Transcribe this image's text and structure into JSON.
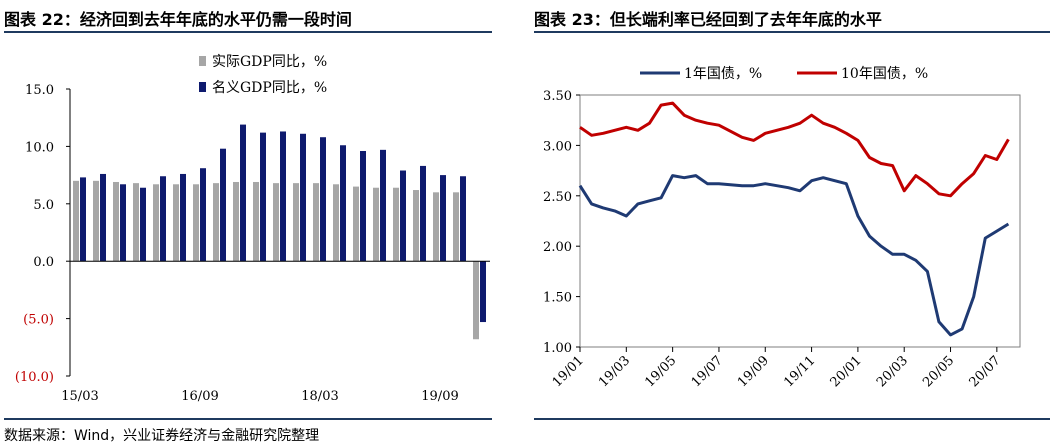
{
  "titles": {
    "left": "图表 22：经济回到去年年底的水平仍需一段时间",
    "right": "图表 23：但长端利率已经回到了去年年底的水平"
  },
  "source": "数据来源：Wind，兴业证券经济与金融研究院整理",
  "chart_data": [
    {
      "type": "bar",
      "categories": [
        "15/03",
        "15/06",
        "15/09",
        "15/12",
        "16/03",
        "16/06",
        "16/09",
        "16/12",
        "17/03",
        "17/06",
        "17/09",
        "17/12",
        "18/03",
        "18/06",
        "18/09",
        "18/12",
        "19/03",
        "19/06",
        "19/09",
        "19/12",
        "20/03"
      ],
      "x_tick_labels": [
        "15/03",
        "16/09",
        "18/03",
        "19/09"
      ],
      "series": [
        {
          "name": "实际GDP同比，%",
          "color": "#a6a6a6",
          "values": [
            7.0,
            7.0,
            6.9,
            6.8,
            6.7,
            6.7,
            6.7,
            6.8,
            6.9,
            6.9,
            6.8,
            6.8,
            6.8,
            6.7,
            6.5,
            6.4,
            6.4,
            6.2,
            6.0,
            6.0,
            -6.8
          ]
        },
        {
          "name": "名义GDP同比，%",
          "color": "#0e1a6e",
          "values": [
            7.3,
            7.6,
            6.7,
            6.4,
            7.4,
            7.6,
            8.1,
            9.8,
            11.9,
            11.2,
            11.3,
            11.1,
            10.8,
            10.1,
            9.6,
            9.7,
            7.9,
            8.3,
            7.5,
            7.4,
            -5.3
          ]
        }
      ],
      "y_tick_labels": [
        "15.0",
        "10.0",
        "5.0",
        "0.0",
        "(5.0)",
        "(10.0)"
      ],
      "ylim": [
        -10,
        15
      ],
      "grid": false,
      "legend": "top-center"
    },
    {
      "type": "line",
      "x_tick_labels": [
        "19/01",
        "19/03",
        "19/05",
        "19/07",
        "19/09",
        "19/11",
        "20/01",
        "20/03",
        "20/05",
        "20/07"
      ],
      "series": [
        {
          "name": "1年国债，%",
          "color": "#1f3a73",
          "points": [
            [
              "19/01",
              2.6
            ],
            [
              "19/01",
              2.42
            ],
            [
              "19/02",
              2.38
            ],
            [
              "19/02",
              2.35
            ],
            [
              "19/03",
              2.3
            ],
            [
              "19/03",
              2.42
            ],
            [
              "19/04",
              2.45
            ],
            [
              "19/04",
              2.48
            ],
            [
              "19/05",
              2.7
            ],
            [
              "19/05",
              2.68
            ],
            [
              "19/06",
              2.7
            ],
            [
              "19/06",
              2.62
            ],
            [
              "19/07",
              2.62
            ],
            [
              "19/08",
              2.6
            ],
            [
              "19/08",
              2.6
            ],
            [
              "19/09",
              2.62
            ],
            [
              "19/10",
              2.58
            ],
            [
              "19/10",
              2.55
            ],
            [
              "19/11",
              2.65
            ],
            [
              "19/11",
              2.68
            ],
            [
              "19/12",
              2.65
            ],
            [
              "19/12",
              2.62
            ],
            [
              "20/01",
              2.3
            ],
            [
              "20/01",
              2.1
            ],
            [
              "20/02",
              2.0
            ],
            [
              "20/02",
              1.92
            ],
            [
              "20/03",
              1.92
            ],
            [
              "20/03",
              1.86
            ],
            [
              "20/04",
              1.75
            ],
            [
              "20/04",
              1.25
            ],
            [
              "20/05",
              1.12
            ],
            [
              "20/05",
              1.18
            ],
            [
              "20/06",
              1.5
            ],
            [
              "20/06",
              2.08
            ],
            [
              "20/07",
              2.15
            ],
            [
              "20/07",
              2.22
            ]
          ]
        },
        {
          "name": "10年国债，%",
          "color": "#c00000",
          "points": [
            [
              "19/01",
              3.18
            ],
            [
              "19/01",
              3.1
            ],
            [
              "19/02",
              3.12
            ],
            [
              "19/02",
              3.15
            ],
            [
              "19/03",
              3.18
            ],
            [
              "19/03",
              3.15
            ],
            [
              "19/04",
              3.22
            ],
            [
              "19/04",
              3.4
            ],
            [
              "19/05",
              3.42
            ],
            [
              "19/05",
              3.3
            ],
            [
              "19/06",
              3.25
            ],
            [
              "19/06",
              3.22
            ],
            [
              "19/07",
              3.2
            ],
            [
              "19/08",
              3.08
            ],
            [
              "19/08",
              3.05
            ],
            [
              "19/09",
              3.12
            ],
            [
              "19/10",
              3.18
            ],
            [
              "19/10",
              3.22
            ],
            [
              "19/11",
              3.3
            ],
            [
              "19/11",
              3.22
            ],
            [
              "19/12",
              3.18
            ],
            [
              "19/12",
              3.12
            ],
            [
              "20/01",
              3.05
            ],
            [
              "20/01",
              2.88
            ],
            [
              "20/02",
              2.82
            ],
            [
              "20/02",
              2.8
            ],
            [
              "20/03",
              2.55
            ],
            [
              "20/03",
              2.7
            ],
            [
              "20/04",
              2.62
            ],
            [
              "20/04",
              2.52
            ],
            [
              "20/05",
              2.5
            ],
            [
              "20/05",
              2.62
            ],
            [
              "20/06",
              2.72
            ],
            [
              "20/06",
              2.9
            ],
            [
              "20/07",
              2.86
            ],
            [
              "20/07",
              3.06
            ]
          ]
        }
      ],
      "y_tick_labels": [
        "3.50",
        "3.00",
        "2.50",
        "2.00",
        "1.50",
        "1.00"
      ],
      "ylim": [
        1.0,
        3.5
      ],
      "grid": false,
      "legend": "top"
    }
  ]
}
